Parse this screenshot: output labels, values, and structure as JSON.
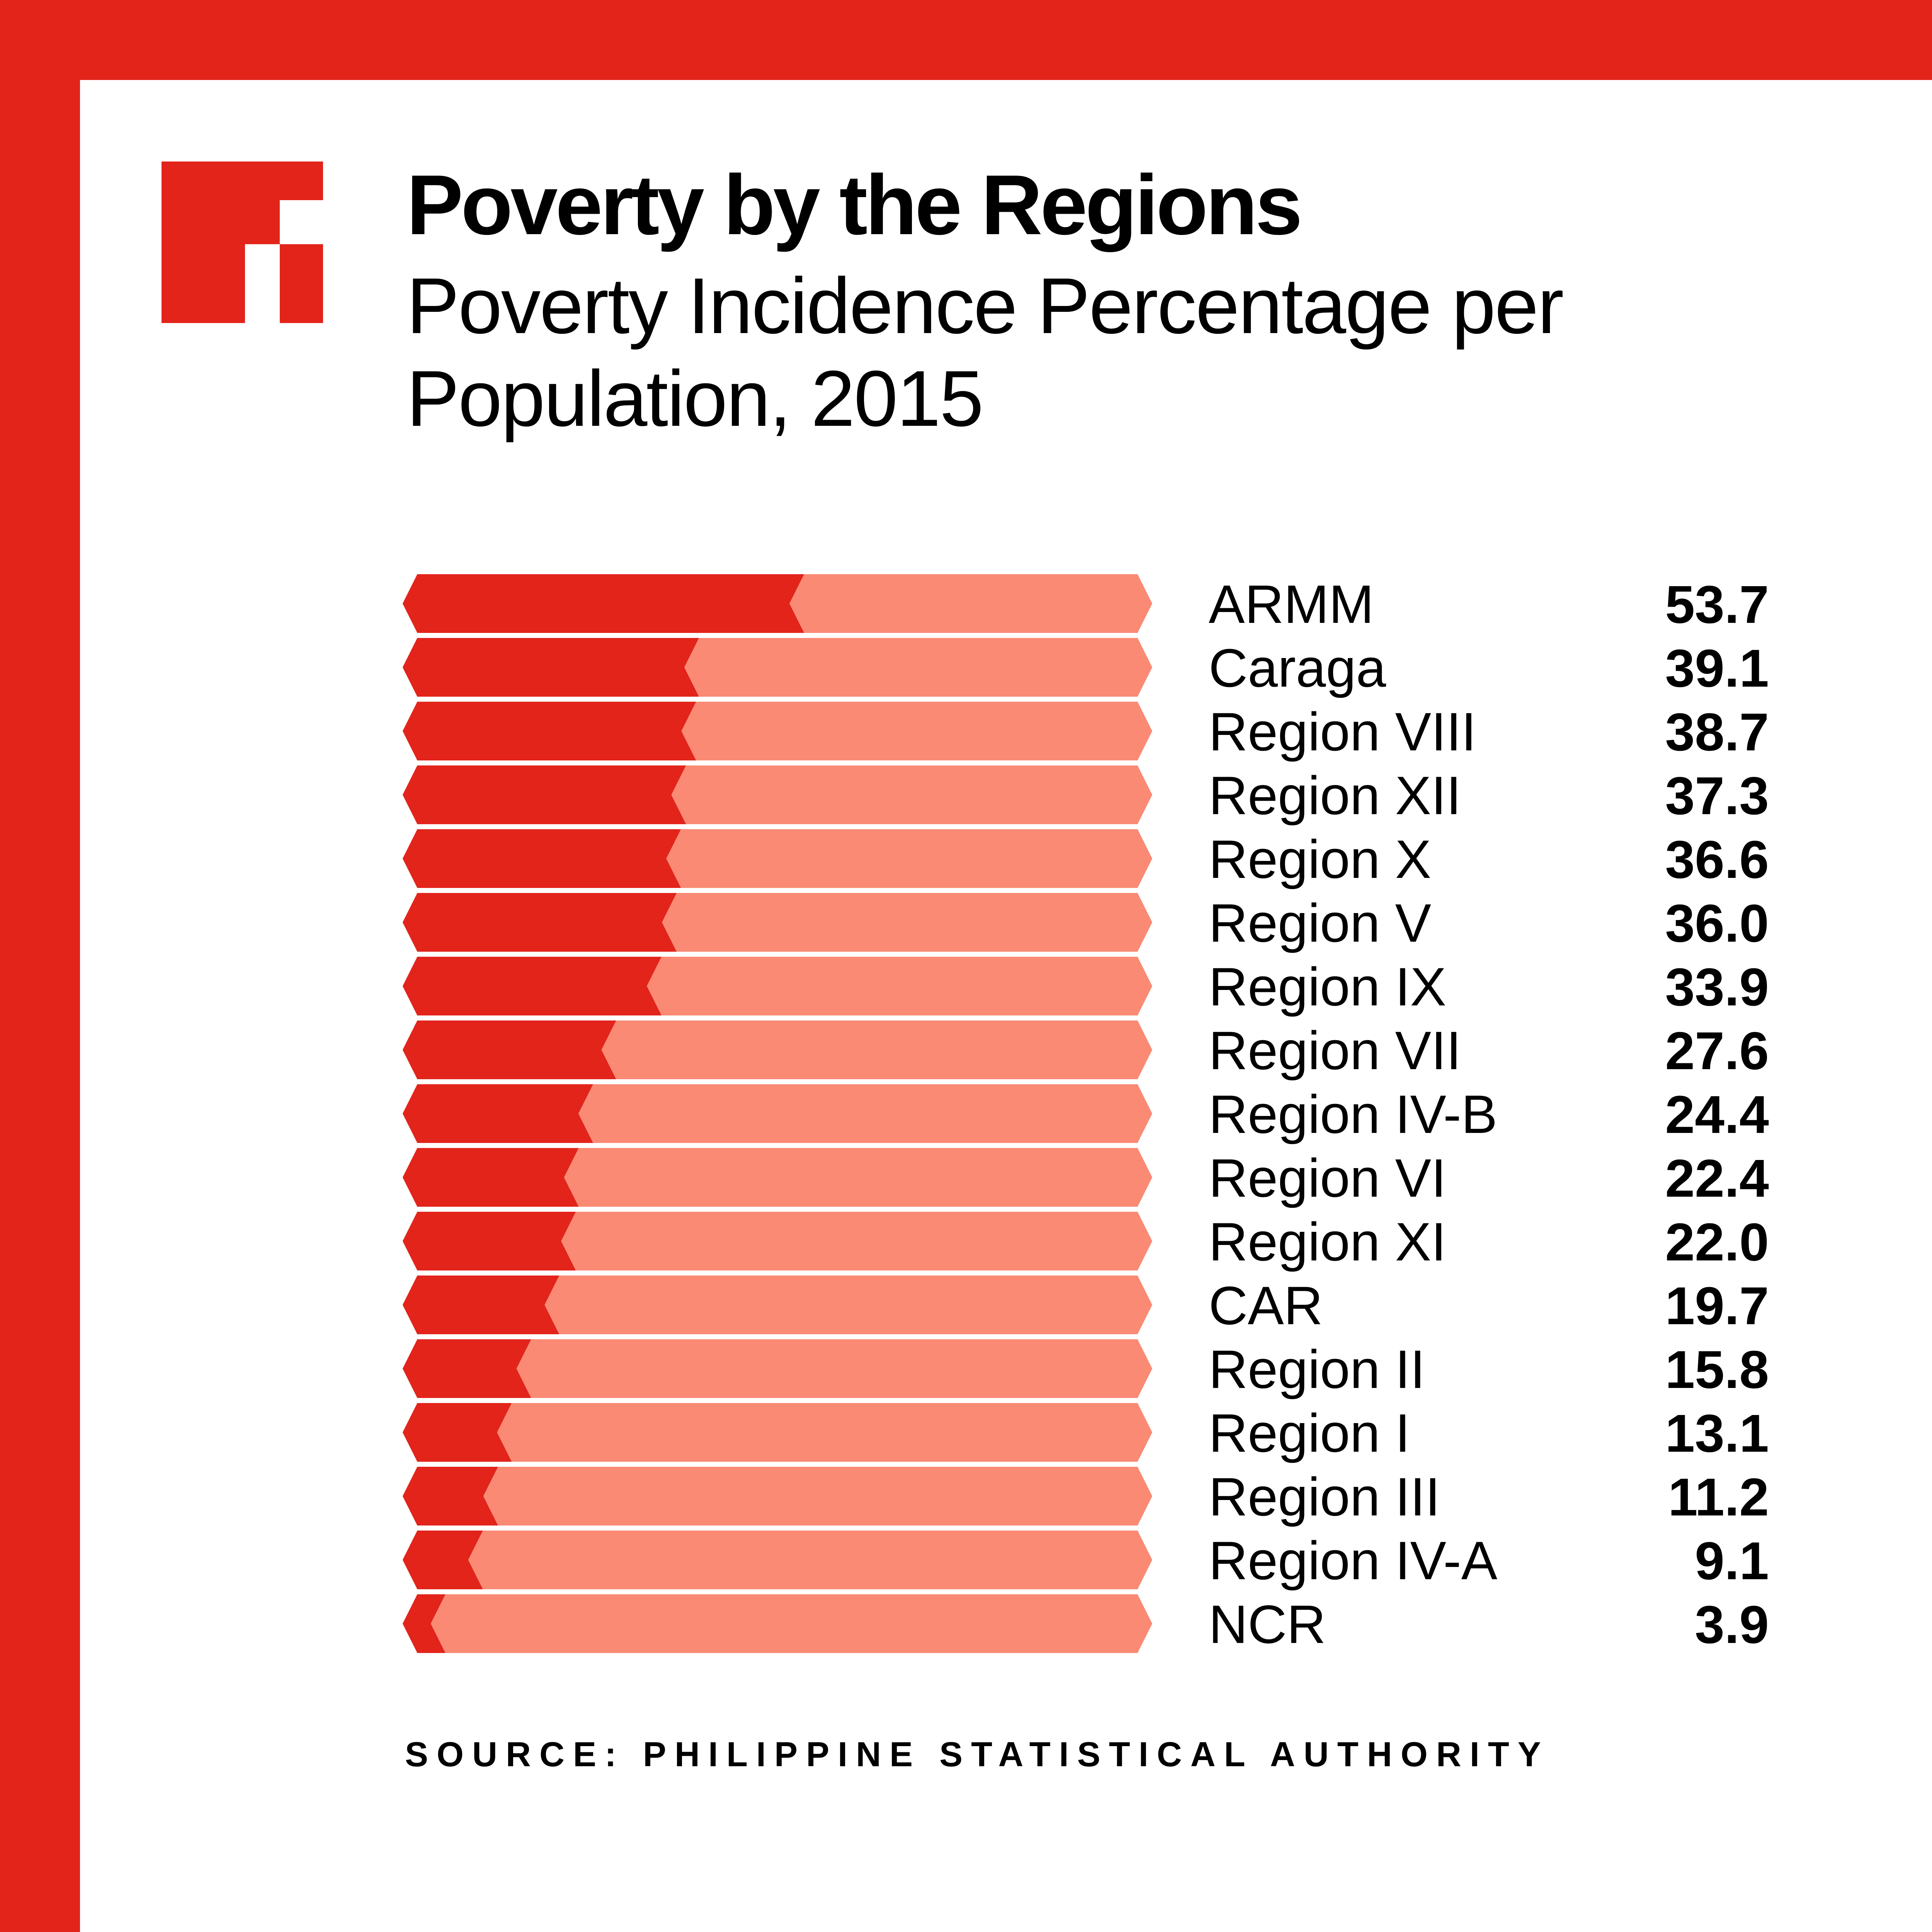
{
  "header": {
    "title": "Poverty by the Regions",
    "subtitle": "Poverty Incidence Percentage per Population, 2015"
  },
  "footer": {
    "source": "SOURCE: PHILIPPINE STATISTICAL AUTHORITY"
  },
  "colors": {
    "frame": "#e2241b",
    "filled": "#e2241b",
    "remainder": "#fa8a74",
    "background": "#ffffff",
    "text": "#000000"
  },
  "chart_data": {
    "type": "bar",
    "orientation": "horizontal",
    "title": "Poverty by the Regions",
    "subtitle": "Poverty Incidence Percentage per Population, 2015",
    "xlim": [
      0,
      100
    ],
    "categories": [
      "ARMM",
      "Caraga",
      "Region VIII",
      "Region XII",
      "Region X",
      "Region V",
      "Region IX",
      "Region VII",
      "Region IV-B",
      "Region VI",
      "Region XI",
      "CAR",
      "Region II",
      "Region I",
      "Region III",
      "Region IV-A",
      "NCR"
    ],
    "values": [
      53.7,
      39.1,
      38.7,
      37.3,
      36.6,
      36.0,
      33.9,
      27.6,
      24.4,
      22.4,
      22.0,
      19.7,
      15.8,
      13.1,
      11.2,
      9.1,
      3.9
    ],
    "value_labels": [
      "53.7",
      "39.1",
      "38.7",
      "37.3",
      "36.6",
      "36.0",
      "33.9",
      "27.6",
      "24.4",
      "22.4",
      "22.0",
      "19.7",
      "15.8",
      "13.1",
      "11.2",
      "9.1",
      "3.9"
    ],
    "grid": false,
    "legend": "none"
  }
}
